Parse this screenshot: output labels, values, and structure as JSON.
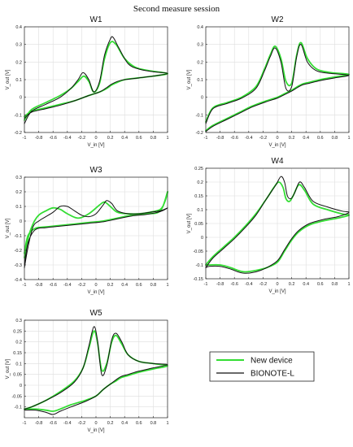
{
  "figure_title": "Second measure session",
  "colors": {
    "new_device": "#33dd33",
    "bionote": "#111111",
    "grid": "#dedede",
    "axis": "#222222"
  },
  "legend": {
    "items": [
      "New device",
      "BIONOTE-L"
    ]
  },
  "chart_data": [
    {
      "type": "line",
      "title": "W1",
      "xlabel": "V_in  [V]",
      "ylabel": "V_out  [V]",
      "xlim": [
        -1,
        1
      ],
      "ylim": [
        -0.2,
        0.4
      ],
      "xticks": [
        -1,
        -0.8,
        -0.6,
        -0.4,
        -0.2,
        0,
        0.2,
        0.4,
        0.6,
        0.8,
        1
      ],
      "xtick_labels": [
        "-1",
        "-0.8",
        "-0.6",
        "-0.4",
        "-0.2",
        "0",
        "0.2",
        "0.4",
        "0.6",
        "0.8",
        "1"
      ],
      "yticks": [
        -0.2,
        -0.1,
        0,
        0.1,
        0.2,
        0.3,
        0.4
      ],
      "ytick_labels": [
        "-0.2",
        "-0.1",
        "0",
        "0.1",
        "0.2",
        "0.3",
        "0.4"
      ],
      "grid": true,
      "series": [
        {
          "name": "New device",
          "x": [
            -1.0,
            -0.9,
            -0.7,
            -0.5,
            -0.35,
            -0.25,
            -0.17,
            -0.1,
            -0.03,
            0.05,
            0.12,
            0.2,
            0.28,
            0.4,
            0.55,
            0.75,
            1.0,
            0.8,
            0.6,
            0.4,
            0.3,
            0.22,
            0.15,
            0.05,
            -0.1,
            -0.3,
            -0.5,
            -0.7,
            -0.9,
            -1.0
          ],
          "y": [
            -0.13,
            -0.07,
            -0.03,
            0.01,
            0.05,
            0.09,
            0.12,
            0.09,
            0.03,
            0.08,
            0.22,
            0.31,
            0.3,
            0.22,
            0.17,
            0.15,
            0.135,
            0.12,
            0.11,
            0.1,
            0.085,
            0.07,
            0.05,
            0.03,
            0.01,
            -0.02,
            -0.04,
            -0.06,
            -0.08,
            -0.11
          ]
        },
        {
          "name": "BIONOTE-L",
          "x": [
            -1.0,
            -0.9,
            -0.7,
            -0.5,
            -0.35,
            -0.25,
            -0.18,
            -0.1,
            -0.03,
            0.05,
            0.12,
            0.2,
            0.24,
            0.32,
            0.45,
            0.6,
            0.8,
            1.0,
            0.8,
            0.6,
            0.4,
            0.3,
            0.22,
            0.15,
            0.05,
            -0.1,
            -0.3,
            -0.5,
            -0.7,
            -0.9,
            -1.0
          ],
          "y": [
            -0.15,
            -0.08,
            -0.04,
            0.0,
            0.05,
            0.1,
            0.14,
            0.1,
            0.03,
            0.09,
            0.24,
            0.33,
            0.34,
            0.28,
            0.19,
            0.16,
            0.145,
            0.135,
            0.12,
            0.11,
            0.1,
            0.09,
            0.075,
            0.055,
            0.03,
            0.01,
            -0.02,
            -0.045,
            -0.065,
            -0.085,
            -0.12
          ]
        }
      ]
    },
    {
      "type": "line",
      "title": "W2",
      "xlabel": "V_in  [V]",
      "ylabel": "V_out  [V]",
      "xlim": [
        -1,
        1
      ],
      "ylim": [
        -0.2,
        0.4
      ],
      "xticks": [
        -1,
        -0.8,
        -0.6,
        -0.4,
        -0.2,
        0,
        0.2,
        0.4,
        0.6,
        0.8,
        1
      ],
      "xtick_labels": [
        "-1",
        "-0.8",
        "-0.6",
        "-0.4",
        "-0.2",
        "0",
        "0.2",
        "0.4",
        "0.6",
        "0.8",
        "1"
      ],
      "yticks": [
        -0.2,
        -0.1,
        0,
        0.1,
        0.2,
        0.3,
        0.4
      ],
      "ytick_labels": [
        "-0.2",
        "-0.1",
        "0",
        "0.1",
        "0.2",
        "0.3",
        "0.4"
      ],
      "grid": true,
      "series": [
        {
          "name": "New device",
          "x": [
            -1.0,
            -0.9,
            -0.7,
            -0.5,
            -0.3,
            -0.18,
            -0.1,
            -0.03,
            0.05,
            0.12,
            0.2,
            0.27,
            0.33,
            0.42,
            0.55,
            0.75,
            1.0,
            0.8,
            0.6,
            0.45,
            0.35,
            0.28,
            0.2,
            0.1,
            0.0,
            -0.15,
            -0.35,
            -0.5,
            -0.7,
            -0.9,
            -1.0
          ],
          "y": [
            -0.14,
            -0.06,
            -0.03,
            0.0,
            0.06,
            0.16,
            0.24,
            0.29,
            0.22,
            0.09,
            0.08,
            0.24,
            0.31,
            0.22,
            0.16,
            0.14,
            0.13,
            0.115,
            0.1,
            0.085,
            0.075,
            0.06,
            0.04,
            0.02,
            0.0,
            -0.02,
            -0.05,
            -0.08,
            -0.12,
            -0.16,
            -0.19
          ]
        },
        {
          "name": "BIONOTE-L",
          "x": [
            -1.0,
            -0.9,
            -0.7,
            -0.5,
            -0.3,
            -0.18,
            -0.1,
            -0.03,
            0.05,
            0.12,
            0.2,
            0.27,
            0.33,
            0.42,
            0.55,
            0.75,
            1.0,
            0.8,
            0.6,
            0.45,
            0.35,
            0.28,
            0.2,
            0.1,
            0.0,
            -0.15,
            -0.35,
            -0.5,
            -0.7,
            -0.9,
            -1.0
          ],
          "y": [
            -0.15,
            -0.065,
            -0.035,
            -0.005,
            0.05,
            0.15,
            0.23,
            0.28,
            0.2,
            0.05,
            0.06,
            0.23,
            0.3,
            0.2,
            0.15,
            0.135,
            0.125,
            0.11,
            0.095,
            0.08,
            0.07,
            0.055,
            0.035,
            0.015,
            -0.005,
            -0.025,
            -0.055,
            -0.085,
            -0.125,
            -0.165,
            -0.195
          ]
        }
      ]
    },
    {
      "type": "line",
      "title": "W3",
      "xlabel": "V_in  [V]",
      "ylabel": "V_out  [V]",
      "xlim": [
        -1,
        1
      ],
      "ylim": [
        -0.4,
        0.3
      ],
      "xticks": [
        -1,
        -0.8,
        -0.6,
        -0.4,
        -0.2,
        0,
        0.2,
        0.4,
        0.6,
        0.8,
        1
      ],
      "xtick_labels": [
        "-1",
        "-0.8",
        "-0.6",
        "-0.4",
        "-0.2",
        "0",
        "0.2",
        "0.4",
        "0.6",
        "0.8",
        "1"
      ],
      "yticks": [
        -0.4,
        -0.3,
        -0.2,
        -0.1,
        0,
        0.1,
        0.2,
        0.3
      ],
      "ytick_labels": [
        "-0.4",
        "-0.3",
        "-0.2",
        "-0.1",
        "0",
        "0.1",
        "0.2",
        "0.3"
      ],
      "grid": true,
      "series": [
        {
          "name": "New device",
          "x": [
            -1.0,
            -0.95,
            -0.88,
            -0.8,
            -0.7,
            -0.6,
            -0.5,
            -0.4,
            -0.25,
            -0.1,
            0.05,
            0.12,
            0.2,
            0.3,
            0.45,
            0.6,
            0.75,
            0.9,
            0.96,
            1.0,
            0.9,
            0.7,
            0.5,
            0.3,
            0.1,
            -0.1,
            -0.3,
            -0.5,
            -0.7,
            -0.85,
            -0.95,
            -1.0
          ],
          "y": [
            -0.25,
            -0.12,
            -0.02,
            0.04,
            0.07,
            0.09,
            0.08,
            0.05,
            0.02,
            0.05,
            0.11,
            0.13,
            0.1,
            0.06,
            0.05,
            0.05,
            0.06,
            0.08,
            0.13,
            0.2,
            0.07,
            0.05,
            0.04,
            0.02,
            0.0,
            -0.01,
            -0.02,
            -0.03,
            -0.04,
            -0.05,
            -0.1,
            -0.22
          ]
        },
        {
          "name": "BIONOTE-L",
          "x": [
            -1.0,
            -0.95,
            -0.88,
            -0.8,
            -0.7,
            -0.6,
            -0.5,
            -0.4,
            -0.3,
            -0.2,
            -0.1,
            0.0,
            0.1,
            0.15,
            0.22,
            0.3,
            0.45,
            0.6,
            0.75,
            0.9,
            1.0,
            0.9,
            0.7,
            0.5,
            0.3,
            0.1,
            -0.1,
            -0.3,
            -0.5,
            -0.7,
            -0.85,
            -0.95,
            -1.0
          ],
          "y": [
            -0.32,
            -0.18,
            -0.04,
            0.0,
            0.03,
            0.06,
            0.1,
            0.1,
            0.07,
            0.04,
            0.03,
            0.05,
            0.11,
            0.14,
            0.12,
            0.07,
            0.05,
            0.05,
            0.06,
            0.07,
            0.09,
            0.065,
            0.045,
            0.035,
            0.015,
            -0.005,
            -0.015,
            -0.025,
            -0.035,
            -0.045,
            -0.06,
            -0.15,
            -0.3
          ]
        }
      ]
    },
    {
      "type": "line",
      "title": "W4",
      "xlabel": "V_in  [V]",
      "ylabel": "V_out  [V]",
      "xlim": [
        -1,
        1
      ],
      "ylim": [
        -0.15,
        0.25
      ],
      "xticks": [
        -1,
        -0.8,
        -0.6,
        -0.4,
        -0.2,
        0,
        0.2,
        0.4,
        0.6,
        0.8,
        1
      ],
      "xtick_labels": [
        "-1",
        "-0.8",
        "-0.6",
        "-0.4",
        "-0.2",
        "0",
        "0.2",
        "0.4",
        "0.6",
        "0.8",
        "1"
      ],
      "yticks": [
        -0.15,
        -0.1,
        -0.05,
        0,
        0.05,
        0.1,
        0.15,
        0.2,
        0.25
      ],
      "ytick_labels": [
        "-0.15",
        "-0.1",
        "-0.05",
        "0",
        "0.05",
        "0.1",
        "0.15",
        "0.2",
        "0.25"
      ],
      "grid": true,
      "series": [
        {
          "name": "New device",
          "x": [
            -1.0,
            -0.9,
            -0.75,
            -0.6,
            -0.45,
            -0.3,
            -0.15,
            -0.05,
            0.02,
            0.08,
            0.12,
            0.17,
            0.22,
            0.3,
            0.38,
            0.5,
            0.7,
            0.9,
            1.0,
            0.85,
            0.65,
            0.45,
            0.3,
            0.2,
            0.1,
            0.0,
            -0.15,
            -0.3,
            -0.45,
            -0.55,
            -0.65,
            -0.8,
            -0.95,
            -1.0
          ],
          "y": [
            -0.1,
            -0.07,
            -0.035,
            0.0,
            0.04,
            0.085,
            0.14,
            0.18,
            0.2,
            0.18,
            0.14,
            0.13,
            0.15,
            0.19,
            0.17,
            0.12,
            0.1,
            0.085,
            0.08,
            0.07,
            0.06,
            0.045,
            0.02,
            -0.01,
            -0.05,
            -0.09,
            -0.11,
            -0.12,
            -0.125,
            -0.12,
            -0.11,
            -0.1,
            -0.1,
            -0.1
          ]
        },
        {
          "name": "BIONOTE-L",
          "x": [
            -1.0,
            -0.9,
            -0.75,
            -0.6,
            -0.45,
            -0.3,
            -0.15,
            -0.02,
            0.05,
            0.1,
            0.14,
            0.19,
            0.24,
            0.31,
            0.38,
            0.5,
            0.7,
            0.9,
            1.0,
            0.85,
            0.65,
            0.45,
            0.3,
            0.2,
            0.1,
            0.0,
            -0.15,
            -0.3,
            -0.45,
            -0.55,
            -0.65,
            -0.8,
            -0.95,
            -1.0
          ],
          "y": [
            -0.11,
            -0.075,
            -0.04,
            -0.005,
            0.035,
            0.08,
            0.14,
            0.19,
            0.22,
            0.2,
            0.15,
            0.14,
            0.16,
            0.2,
            0.18,
            0.13,
            0.11,
            0.095,
            0.09,
            0.075,
            0.065,
            0.05,
            0.025,
            -0.005,
            -0.045,
            -0.085,
            -0.11,
            -0.125,
            -0.13,
            -0.125,
            -0.115,
            -0.105,
            -0.105,
            -0.11
          ]
        }
      ]
    },
    {
      "type": "line",
      "title": "W5",
      "xlabel": "V_in  [V]",
      "ylabel": "V_out  [V]",
      "xlim": [
        -1,
        1
      ],
      "ylim": [
        -0.15,
        0.3
      ],
      "xticks": [
        -1,
        -0.8,
        -0.6,
        -0.4,
        -0.2,
        0,
        0.2,
        0.4,
        0.6,
        0.8,
        1
      ],
      "xtick_labels": [
        "-1",
        "-0.8",
        "-0.6",
        "-0.4",
        "-0.2",
        "0",
        "0.2",
        "0.4",
        "0.6",
        "0.8",
        "1"
      ],
      "yticks": [
        -0.1,
        -0.05,
        0,
        0.05,
        0.1,
        0.15,
        0.2,
        0.25,
        0.3
      ],
      "ytick_labels": [
        "-0.1",
        "-0.05",
        "0",
        "0.05",
        "0.1",
        "0.15",
        "0.2",
        "0.25",
        "0.3"
      ],
      "grid": true,
      "series": [
        {
          "name": "New device",
          "x": [
            -1.0,
            -0.9,
            -0.7,
            -0.5,
            -0.3,
            -0.18,
            -0.1,
            -0.03,
            0.02,
            0.08,
            0.15,
            0.22,
            0.28,
            0.36,
            0.45,
            0.6,
            0.8,
            1.0,
            0.8,
            0.6,
            0.45,
            0.35,
            0.28,
            0.2,
            0.1,
            0.0,
            -0.15,
            -0.35,
            -0.5,
            -0.6,
            -0.7,
            -0.85,
            -1.0
          ],
          "y": [
            -0.11,
            -0.1,
            -0.07,
            -0.03,
            0.02,
            0.08,
            0.17,
            0.25,
            0.2,
            0.07,
            0.1,
            0.2,
            0.23,
            0.19,
            0.14,
            0.11,
            0.1,
            0.09,
            0.075,
            0.06,
            0.045,
            0.035,
            0.02,
            0.005,
            -0.02,
            -0.05,
            -0.07,
            -0.09,
            -0.11,
            -0.12,
            -0.115,
            -0.11,
            -0.11
          ]
        },
        {
          "name": "BIONOTE-L",
          "x": [
            -1.0,
            -0.9,
            -0.7,
            -0.5,
            -0.3,
            -0.18,
            -0.1,
            -0.03,
            0.02,
            0.08,
            0.15,
            0.22,
            0.28,
            0.36,
            0.45,
            0.6,
            0.8,
            1.0,
            0.8,
            0.6,
            0.45,
            0.35,
            0.28,
            0.2,
            0.1,
            0.0,
            -0.15,
            -0.35,
            -0.5,
            -0.6,
            -0.7,
            -0.85,
            -1.0
          ],
          "y": [
            -0.11,
            -0.1,
            -0.07,
            -0.035,
            0.015,
            0.08,
            0.18,
            0.27,
            0.21,
            0.05,
            0.09,
            0.21,
            0.24,
            0.2,
            0.14,
            0.11,
            0.1,
            0.095,
            0.08,
            0.065,
            0.05,
            0.04,
            0.025,
            0.005,
            -0.02,
            -0.05,
            -0.075,
            -0.1,
            -0.12,
            -0.135,
            -0.125,
            -0.115,
            -0.115
          ]
        }
      ]
    }
  ]
}
